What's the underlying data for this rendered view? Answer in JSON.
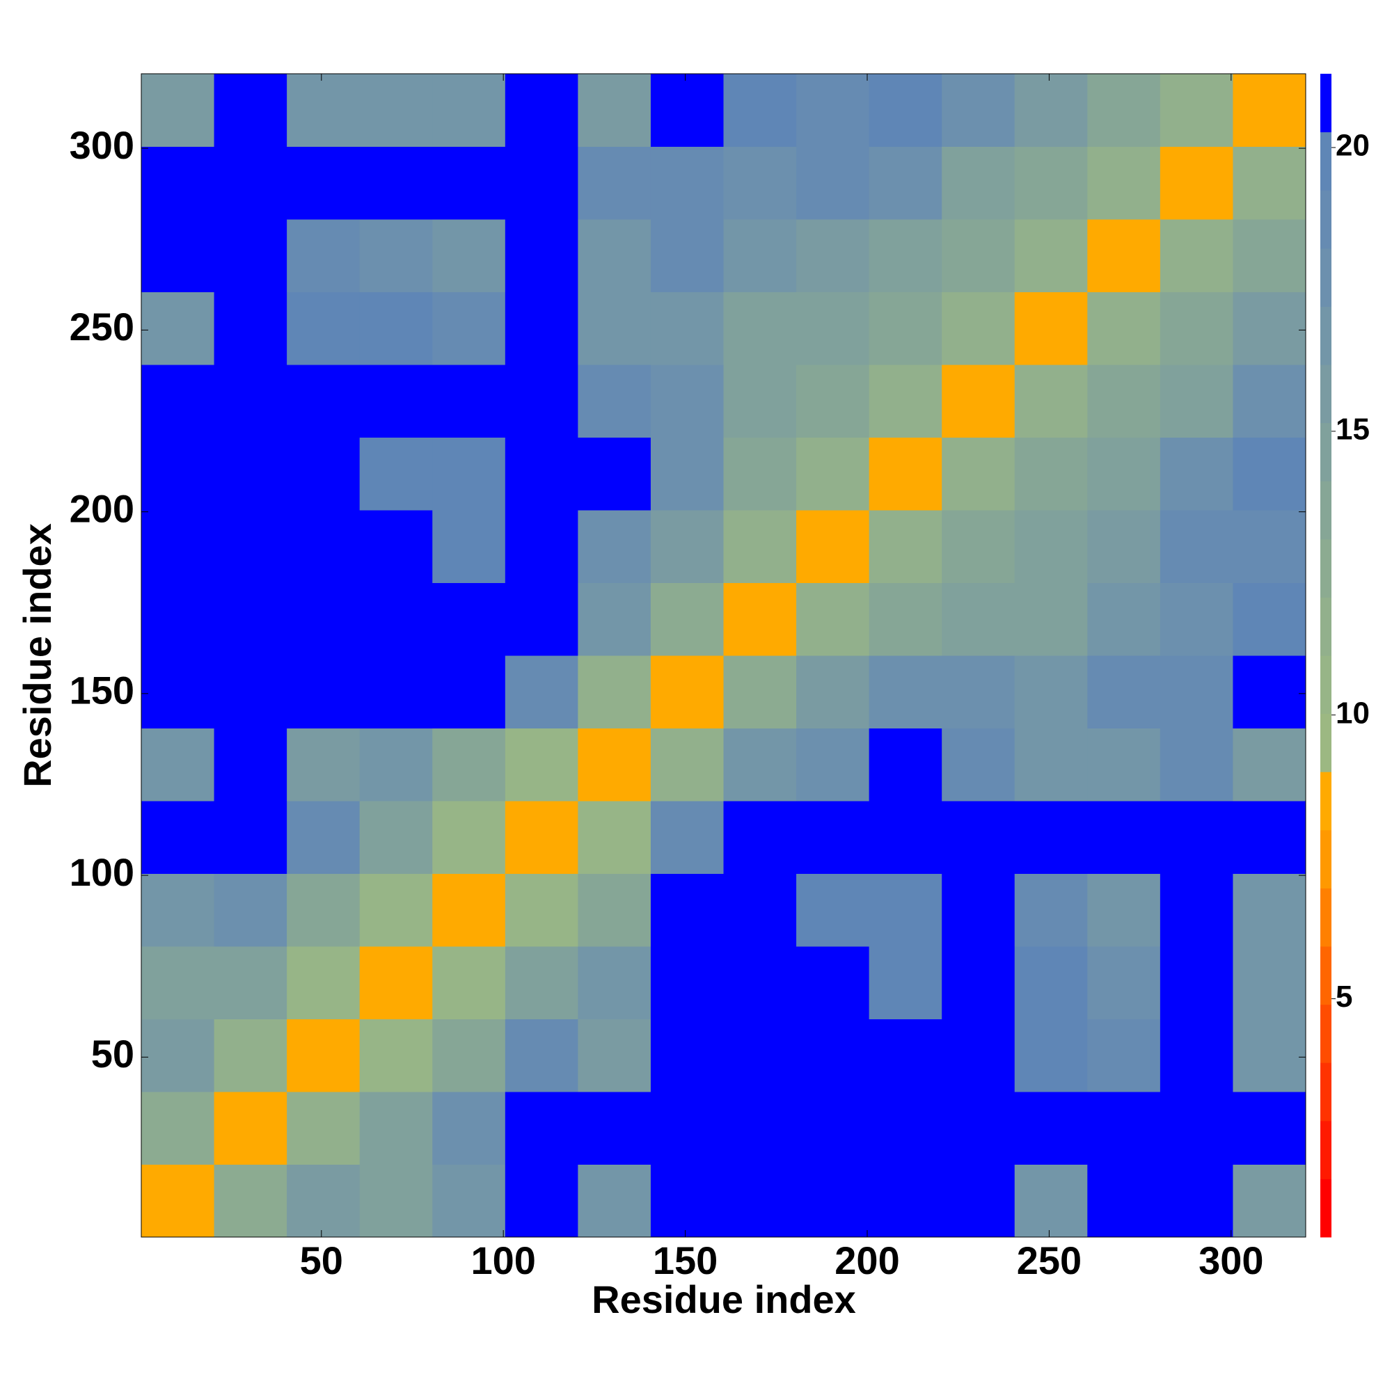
{
  "chart_data": {
    "type": "heatmap",
    "xlabel": "Residue index",
    "ylabel": "Residue index",
    "x": [
      10.5,
      30.5,
      50.5,
      70.5,
      90.5,
      110.5,
      130.5,
      150.5,
      170.5,
      190.5,
      210.5,
      230.5,
      250.5,
      270.5,
      290.5,
      310.5
    ],
    "y": [
      10.5,
      30.5,
      50.5,
      70.5,
      90.5,
      110.5,
      130.5,
      150.5,
      170.5,
      190.5,
      210.5,
      230.5,
      250.5,
      270.5,
      290.5,
      310.5
    ],
    "values": [
      [
        8,
        13,
        16,
        15,
        17,
        21,
        17,
        21,
        21,
        21,
        21,
        21,
        17,
        21,
        21,
        16
      ],
      [
        13,
        8,
        12,
        15,
        18,
        21,
        21,
        21,
        21,
        21,
        21,
        21,
        21,
        21,
        21,
        21
      ],
      [
        16,
        12,
        8,
        11,
        14,
        19,
        16,
        21,
        21,
        21,
        21,
        21,
        20,
        19,
        21,
        17
      ],
      [
        15,
        15,
        11,
        8,
        11,
        15,
        17,
        21,
        21,
        21,
        20,
        21,
        20,
        18,
        21,
        17
      ],
      [
        17,
        18,
        14,
        11,
        8,
        11,
        14,
        21,
        21,
        20,
        20,
        21,
        19,
        17,
        21,
        17
      ],
      [
        21,
        21,
        19,
        15,
        11,
        8,
        11,
        19,
        21,
        21,
        21,
        21,
        21,
        21,
        21,
        21
      ],
      [
        17,
        21,
        16,
        17,
        14,
        11,
        8,
        12,
        17,
        18,
        21,
        19,
        17,
        17,
        19,
        16
      ],
      [
        21,
        21,
        21,
        21,
        21,
        19,
        12,
        8,
        13,
        16,
        18,
        18,
        17,
        19,
        19,
        21
      ],
      [
        21,
        21,
        21,
        21,
        21,
        21,
        17,
        13,
        8,
        12,
        14,
        15,
        15,
        17,
        18,
        20
      ],
      [
        21,
        21,
        21,
        21,
        20,
        21,
        18,
        16,
        12,
        8,
        12,
        14,
        15,
        16,
        19,
        19
      ],
      [
        21,
        21,
        21,
        20,
        20,
        21,
        21,
        18,
        14,
        12,
        8,
        12,
        14,
        15,
        18,
        20
      ],
      [
        21,
        21,
        21,
        21,
        21,
        21,
        19,
        18,
        15,
        14,
        12,
        8,
        12,
        14,
        15,
        18
      ],
      [
        17,
        21,
        20,
        20,
        19,
        21,
        17,
        17,
        15,
        15,
        14,
        12,
        8,
        12,
        14,
        16
      ],
      [
        21,
        21,
        19,
        18,
        17,
        21,
        17,
        19,
        17,
        16,
        15,
        14,
        12,
        8,
        12,
        14
      ],
      [
        21,
        21,
        21,
        21,
        21,
        21,
        19,
        19,
        18,
        19,
        18,
        15,
        14,
        12,
        8,
        12
      ],
      [
        16,
        21,
        17,
        17,
        17,
        21,
        16,
        21,
        20,
        19,
        20,
        18,
        16,
        14,
        12,
        8
      ]
    ],
    "xlim": [
      0.5,
      320.5
    ],
    "ylim": [
      0.5,
      320.5
    ],
    "xticks": [
      50,
      100,
      150,
      200,
      250,
      300
    ],
    "yticks": [
      50,
      100,
      150,
      200,
      250,
      300
    ],
    "clim": [
      0.8,
      21.3
    ],
    "cticks": [
      5,
      10,
      15,
      20
    ],
    "colors": [
      "#ff0000",
      "#ff1a00",
      "#ff3300",
      "#ff4d00",
      "#ff6600",
      "#ff8000",
      "#ff9900",
      "#ffaa00",
      "#9cb882",
      "#97b587",
      "#92b08c",
      "#8cab91",
      "#86a696",
      "#80a19c",
      "#7a9ba2",
      "#7396a8",
      "#6c90ae",
      "#668bb2",
      "#5f86b6",
      "#0000ff"
    ]
  }
}
